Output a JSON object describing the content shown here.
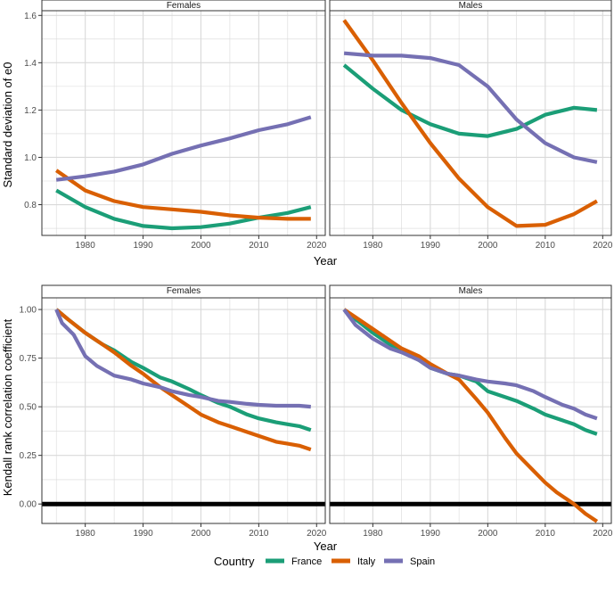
{
  "chart_data": [
    {
      "type": "line",
      "ylabel": "Standard deviation of e0",
      "xlabel": "Year",
      "xlim": [
        1972.5,
        2021.5
      ],
      "ylim": [
        0.67,
        1.62
      ],
      "yticks": [
        0.8,
        1.0,
        1.2,
        1.4,
        1.6
      ],
      "ytick_labels": [
        "0.8",
        "1.0",
        "1.2",
        "1.4",
        "1.6"
      ],
      "xticks": [
        1980,
        1990,
        2000,
        2010,
        2020
      ],
      "xtick_labels": [
        "1980",
        "1990",
        "2000",
        "2010",
        "2020"
      ],
      "reference_line": null,
      "panels": [
        {
          "label": "Females",
          "series": [
            {
              "name": "France",
              "x": [
                1975,
                1980,
                1985,
                1990,
                1995,
                2000,
                2005,
                2010,
                2015,
                2019
              ],
              "values": [
                0.86,
                0.79,
                0.74,
                0.71,
                0.7,
                0.705,
                0.72,
                0.745,
                0.765,
                0.79
              ]
            },
            {
              "name": "Italy",
              "x": [
                1975,
                1980,
                1985,
                1990,
                1995,
                2000,
                2005,
                2010,
                2015,
                2019
              ],
              "values": [
                0.945,
                0.86,
                0.815,
                0.79,
                0.78,
                0.77,
                0.755,
                0.745,
                0.74,
                0.74
              ]
            },
            {
              "name": "Spain",
              "x": [
                1975,
                1980,
                1985,
                1990,
                1995,
                2000,
                2005,
                2010,
                2015,
                2019
              ],
              "values": [
                0.905,
                0.92,
                0.94,
                0.97,
                1.015,
                1.05,
                1.08,
                1.115,
                1.14,
                1.17
              ]
            }
          ]
        },
        {
          "label": "Males",
          "series": [
            {
              "name": "France",
              "x": [
                1975,
                1980,
                1985,
                1990,
                1995,
                2000,
                2005,
                2010,
                2015,
                2019
              ],
              "values": [
                1.39,
                1.29,
                1.2,
                1.14,
                1.1,
                1.09,
                1.12,
                1.18,
                1.21,
                1.2
              ]
            },
            {
              "name": "Italy",
              "x": [
                1975,
                1980,
                1985,
                1990,
                1995,
                2000,
                2005,
                2010,
                2015,
                2019
              ],
              "values": [
                1.58,
                1.41,
                1.23,
                1.06,
                0.91,
                0.79,
                0.71,
                0.715,
                0.76,
                0.815
              ]
            },
            {
              "name": "Spain",
              "x": [
                1975,
                1980,
                1985,
                1990,
                1995,
                2000,
                2005,
                2010,
                2015,
                2019
              ],
              "values": [
                1.44,
                1.43,
                1.43,
                1.42,
                1.39,
                1.3,
                1.16,
                1.06,
                1.0,
                0.98
              ]
            }
          ]
        }
      ]
    },
    {
      "type": "line",
      "ylabel": "Kendall rank correlation coefficient",
      "xlabel": "Year",
      "xlim": [
        1972.5,
        2021.5
      ],
      "ylim": [
        -0.1,
        1.06
      ],
      "yticks": [
        0.0,
        0.25,
        0.5,
        0.75,
        1.0
      ],
      "ytick_labels": [
        "0.00",
        "0.25",
        "0.50",
        "0.75",
        "1.00"
      ],
      "xticks": [
        1980,
        1990,
        2000,
        2010,
        2020
      ],
      "xtick_labels": [
        "1980",
        "1990",
        "2000",
        "2010",
        "2020"
      ],
      "reference_line": 0,
      "panels": [
        {
          "label": "Females",
          "series": [
            {
              "name": "France",
              "x": [
                1975,
                1977,
                1980,
                1983,
                1985,
                1988,
                1990,
                1993,
                1995,
                1998,
                2000,
                2003,
                2005,
                2008,
                2010,
                2013,
                2015,
                2017,
                2019
              ],
              "values": [
                1.0,
                0.95,
                0.88,
                0.82,
                0.79,
                0.73,
                0.7,
                0.65,
                0.63,
                0.59,
                0.56,
                0.52,
                0.5,
                0.46,
                0.44,
                0.42,
                0.41,
                0.4,
                0.38
              ]
            },
            {
              "name": "Italy",
              "x": [
                1975,
                1977,
                1980,
                1983,
                1985,
                1988,
                1990,
                1993,
                1995,
                1998,
                2000,
                2003,
                2005,
                2008,
                2010,
                2013,
                2015,
                2017,
                2019
              ],
              "values": [
                1.0,
                0.95,
                0.88,
                0.82,
                0.78,
                0.71,
                0.67,
                0.6,
                0.56,
                0.5,
                0.46,
                0.42,
                0.4,
                0.37,
                0.35,
                0.32,
                0.31,
                0.3,
                0.28
              ]
            },
            {
              "name": "Spain",
              "x": [
                1975,
                1976,
                1978,
                1980,
                1982,
                1985,
                1988,
                1990,
                1993,
                1995,
                1998,
                2000,
                2003,
                2005,
                2008,
                2010,
                2013,
                2015,
                2017,
                2019
              ],
              "values": [
                1.0,
                0.93,
                0.87,
                0.76,
                0.71,
                0.66,
                0.64,
                0.62,
                0.6,
                0.58,
                0.56,
                0.55,
                0.53,
                0.525,
                0.515,
                0.51,
                0.505,
                0.505,
                0.505,
                0.5
              ]
            }
          ]
        },
        {
          "label": "Males",
          "series": [
            {
              "name": "France",
              "x": [
                1975,
                1977,
                1980,
                1983,
                1985,
                1988,
                1990,
                1993,
                1995,
                1998,
                2000,
                2003,
                2005,
                2008,
                2010,
                2013,
                2015,
                2017,
                2019
              ],
              "values": [
                1.0,
                0.95,
                0.88,
                0.82,
                0.79,
                0.74,
                0.7,
                0.67,
                0.66,
                0.63,
                0.58,
                0.55,
                0.53,
                0.49,
                0.46,
                0.43,
                0.41,
                0.38,
                0.36
              ]
            },
            {
              "name": "Italy",
              "x": [
                1975,
                1977,
                1980,
                1983,
                1985,
                1988,
                1990,
                1993,
                1995,
                1998,
                2000,
                2003,
                2005,
                2007,
                2008,
                2010,
                2012,
                2015,
                2017,
                2019
              ],
              "values": [
                1.0,
                0.96,
                0.9,
                0.84,
                0.8,
                0.76,
                0.72,
                0.67,
                0.64,
                0.54,
                0.47,
                0.34,
                0.26,
                0.2,
                0.17,
                0.11,
                0.06,
                0.0,
                -0.05,
                -0.09
              ]
            },
            {
              "name": "Spain",
              "x": [
                1975,
                1977,
                1980,
                1983,
                1985,
                1988,
                1990,
                1993,
                1995,
                1998,
                2000,
                2003,
                2005,
                2008,
                2010,
                2013,
                2015,
                2017,
                2019
              ],
              "values": [
                1.0,
                0.92,
                0.85,
                0.8,
                0.78,
                0.74,
                0.7,
                0.67,
                0.66,
                0.64,
                0.63,
                0.62,
                0.61,
                0.58,
                0.55,
                0.51,
                0.49,
                0.46,
                0.44
              ]
            }
          ]
        }
      ]
    }
  ],
  "legend": {
    "title": "Country",
    "entries": [
      {
        "name": "France",
        "color": "#1b9e77"
      },
      {
        "name": "Italy",
        "color": "#d95f02"
      },
      {
        "name": "Spain",
        "color": "#7570b3"
      }
    ]
  },
  "colors": {
    "France": "#1b9e77",
    "Italy": "#d95f02",
    "Spain": "#7570b3",
    "grid": "#d9d9d9",
    "border": "#333333",
    "reference": "#000000"
  }
}
